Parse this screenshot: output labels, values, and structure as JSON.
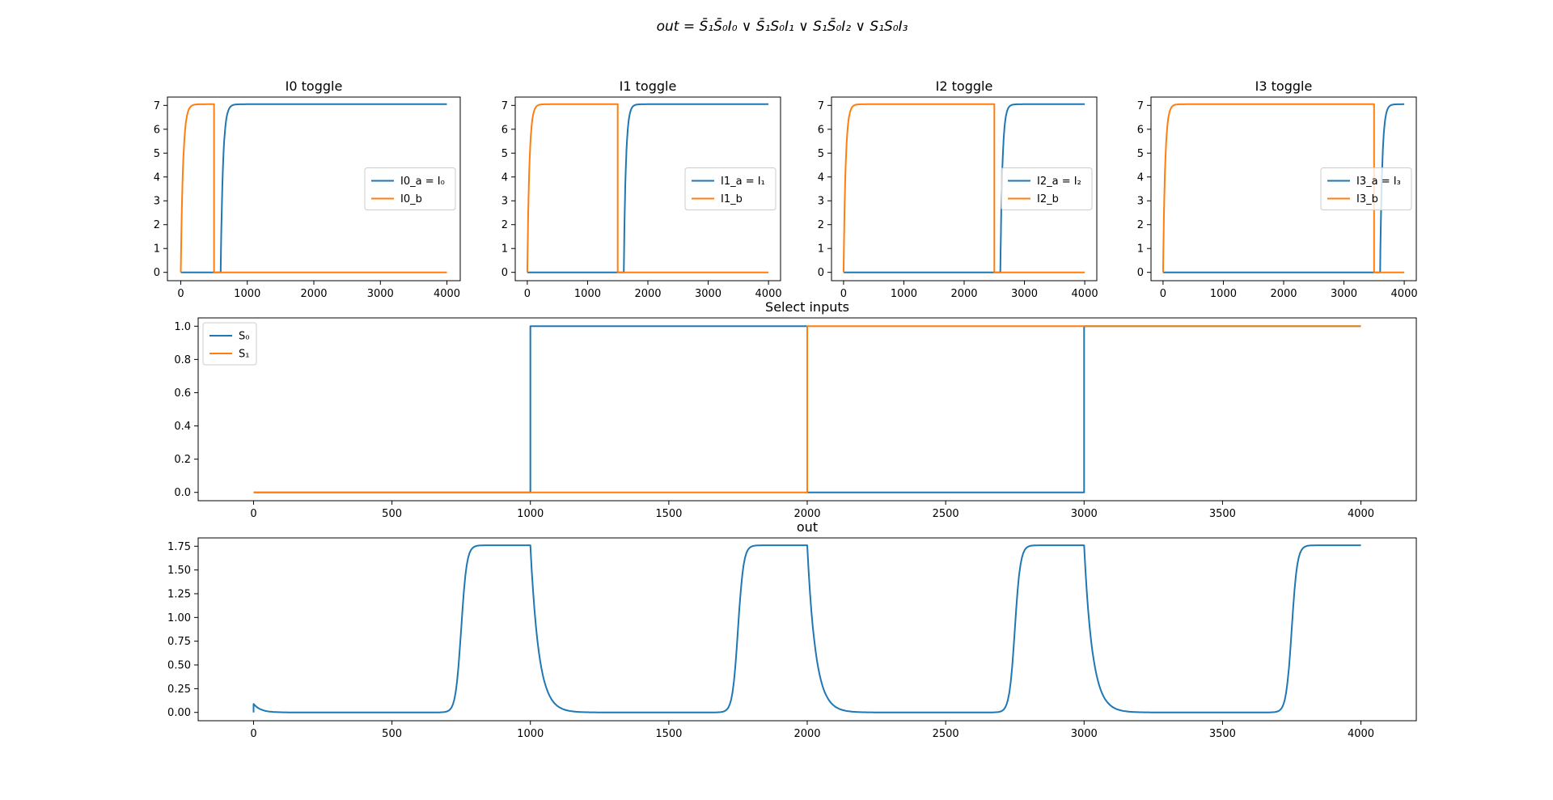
{
  "figure": {
    "suptitle": "out = S̄₁S̄₀I₀ ∨ S̄₁S₀I₁ ∨ S₁S̄₀I₂ ∨ S₁S₀I₃"
  },
  "colors": {
    "blue": "#1f77b4",
    "orange": "#ff7f0e"
  },
  "chart_data": [
    {
      "id": "I0",
      "type": "line",
      "title": "I0 toggle",
      "xlim": [
        -200,
        4200
      ],
      "ylim": [
        -0.35,
        7.35
      ],
      "xticks": [
        0,
        1000,
        2000,
        3000,
        4000
      ],
      "yticks": [
        0,
        1,
        2,
        3,
        4,
        5,
        6,
        7
      ],
      "legend": "center-right",
      "series": [
        {
          "name": "I0_a = I₀",
          "color": "blue",
          "shape": "rise",
          "t_on": 600,
          "high": 7.05,
          "t_end": 4000
        },
        {
          "name": "I0_b",
          "color": "orange",
          "shape": "pulse",
          "t_on": 0,
          "t_off": 500,
          "high": 7.05,
          "t_end": 4000
        }
      ]
    },
    {
      "id": "I1",
      "type": "line",
      "title": "I1 toggle",
      "xlim": [
        -200,
        4200
      ],
      "ylim": [
        -0.35,
        7.35
      ],
      "xticks": [
        0,
        1000,
        2000,
        3000,
        4000
      ],
      "yticks": [
        0,
        1,
        2,
        3,
        4,
        5,
        6,
        7
      ],
      "legend": "center-right",
      "series": [
        {
          "name": "I1_a = I₁",
          "color": "blue",
          "shape": "rise",
          "t_on": 1600,
          "high": 7.05,
          "t_end": 4000
        },
        {
          "name": "I1_b",
          "color": "orange",
          "shape": "pulse",
          "t_on": 0,
          "t_off": 1500,
          "high": 7.05,
          "t_end": 4000
        }
      ]
    },
    {
      "id": "I2",
      "type": "line",
      "title": "I2 toggle",
      "xlim": [
        -200,
        4200
      ],
      "ylim": [
        -0.35,
        7.35
      ],
      "xticks": [
        0,
        1000,
        2000,
        3000,
        4000
      ],
      "yticks": [
        0,
        1,
        2,
        3,
        4,
        5,
        6,
        7
      ],
      "legend": "center-right",
      "series": [
        {
          "name": "I2_a = I₂",
          "color": "blue",
          "shape": "rise",
          "t_on": 2600,
          "high": 7.05,
          "t_end": 4000
        },
        {
          "name": "I2_b",
          "color": "orange",
          "shape": "pulse",
          "t_on": 0,
          "t_off": 2500,
          "high": 7.05,
          "t_end": 4000
        }
      ]
    },
    {
      "id": "I3",
      "type": "line",
      "title": "I3 toggle",
      "xlim": [
        -200,
        4200
      ],
      "ylim": [
        -0.35,
        7.35
      ],
      "xticks": [
        0,
        1000,
        2000,
        3000,
        4000
      ],
      "yticks": [
        0,
        1,
        2,
        3,
        4,
        5,
        6,
        7
      ],
      "legend": "center-right",
      "series": [
        {
          "name": "I3_a = I₃",
          "color": "blue",
          "shape": "rise",
          "t_on": 3600,
          "high": 7.05,
          "t_end": 4000
        },
        {
          "name": "I3_b",
          "color": "orange",
          "shape": "pulse",
          "t_on": 0,
          "t_off": 3500,
          "high": 7.05,
          "t_end": 4000
        }
      ]
    },
    {
      "id": "select",
      "type": "line",
      "title": "Select inputs",
      "xlim": [
        -200,
        4200
      ],
      "ylim": [
        -0.05,
        1.05
      ],
      "xticks": [
        0,
        500,
        1000,
        1500,
        2000,
        2500,
        3000,
        3500,
        4000
      ],
      "yticks": [
        0.0,
        0.2,
        0.4,
        0.6,
        0.8,
        1.0
      ],
      "legend": "upper-left",
      "series": [
        {
          "name": "S₀",
          "color": "blue",
          "shape": "step",
          "steps": [
            [
              0,
              0
            ],
            [
              1000,
              1
            ],
            [
              2000,
              0
            ],
            [
              3000,
              1
            ],
            [
              4000,
              1
            ]
          ]
        },
        {
          "name": "S₁",
          "color": "orange",
          "shape": "step",
          "steps": [
            [
              0,
              0
            ],
            [
              2000,
              1
            ],
            [
              4000,
              1
            ]
          ]
        }
      ]
    },
    {
      "id": "out",
      "type": "line",
      "title": "out",
      "xlim": [
        -200,
        4200
      ],
      "ylim": [
        -0.0875,
        1.8375
      ],
      "xticks": [
        0,
        500,
        1000,
        1500,
        2000,
        2500,
        3000,
        3500,
        4000
      ],
      "yticks": [
        0.0,
        0.25,
        0.5,
        0.75,
        1.0,
        1.25,
        1.5,
        1.75
      ],
      "legend": "none",
      "series": [
        {
          "name": "",
          "color": "blue",
          "shape": "out",
          "high": 1.76,
          "initial_spike": 0.09,
          "pulses": [
            [
              750,
              1000
            ],
            [
              1750,
              2000
            ],
            [
              2750,
              3000
            ],
            [
              3750,
              4000
            ]
          ],
          "t_end": 4000
        }
      ]
    }
  ]
}
